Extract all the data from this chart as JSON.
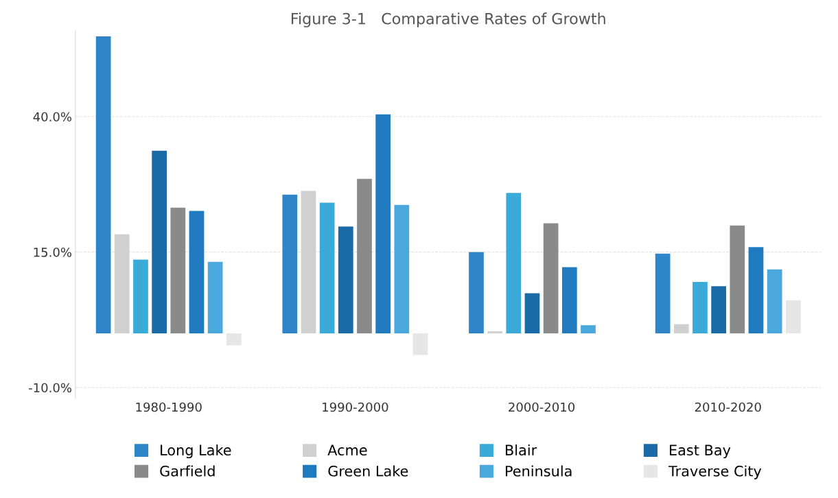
{
  "chart_data": {
    "type": "bar",
    "title": "Figure 3-1   Comparative Rates of Growth",
    "categories": [
      "1980-1990",
      "1990-2000",
      "2000-2010",
      "2010-2020"
    ],
    "series": [
      {
        "name": "Long Lake",
        "color": "#2e86c8",
        "values": [
          54.8,
          25.6,
          15.0,
          14.7
        ]
      },
      {
        "name": "Acme",
        "color": "#d0d0d0",
        "values": [
          18.3,
          26.3,
          0.4,
          1.7
        ]
      },
      {
        "name": "Blair",
        "color": "#3aaad8",
        "values": [
          13.6,
          24.1,
          25.9,
          9.5
        ]
      },
      {
        "name": "East Bay",
        "color": "#1a6aa8",
        "values": [
          33.7,
          19.7,
          7.4,
          8.7
        ]
      },
      {
        "name": "Garfield",
        "color": "#8a8a8a",
        "values": [
          23.2,
          28.5,
          20.3,
          19.9
        ]
      },
      {
        "name": "Green Lake",
        "color": "#1f7ac0",
        "values": [
          22.6,
          40.4,
          12.2,
          15.9
        ]
      },
      {
        "name": "Peninsula",
        "color": "#4aa8dc",
        "values": [
          13.2,
          23.7,
          1.5,
          11.8
        ]
      },
      {
        "name": "Traverse City",
        "color": "#e6e6e6",
        "values": [
          -2.2,
          -4.0,
          null,
          6.1
        ]
      }
    ],
    "ylim": [
      -12,
      56
    ],
    "yticks": [
      {
        "value": -10,
        "label": "-10.0%"
      },
      {
        "value": 15,
        "label": "15.0%"
      },
      {
        "value": 40,
        "label": "40.0%"
      }
    ],
    "grid": "y",
    "legend": "bottom"
  }
}
